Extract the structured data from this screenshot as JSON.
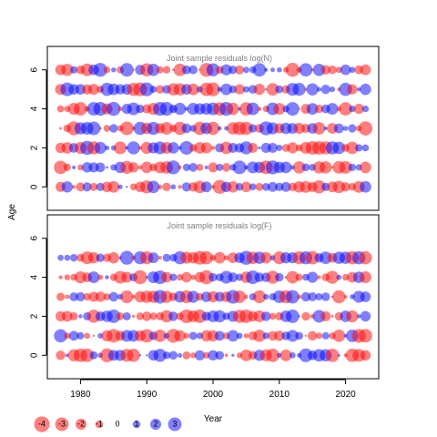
{
  "chart_data": [
    {
      "type": "scatter",
      "title": "Joint sample residuals log(N)",
      "x_range": [
        1975,
        2025
      ],
      "ylim": [
        -1.2,
        7.2
      ],
      "ages": [
        0,
        1,
        2,
        3,
        4,
        5,
        6
      ],
      "years": [
        1977,
        2023
      ],
      "y_ticks": [
        0,
        2,
        4,
        6
      ]
    },
    {
      "type": "scatter",
      "title": "Joint sample residuals log(F)",
      "x_range": [
        1975,
        2025
      ],
      "ylim": [
        -1.2,
        7.2
      ],
      "ages": [
        0,
        1,
        2,
        3,
        4,
        5
      ],
      "years": [
        1977,
        2023
      ],
      "y_ticks": [
        0,
        2,
        4,
        6
      ]
    }
  ],
  "x_ticks": [
    1980,
    1990,
    2000,
    2010,
    2020
  ],
  "xlabel": "Year",
  "ylabel": "Age",
  "colors": {
    "negative": "#ff0000",
    "positive": "#0000ff"
  },
  "legend": [
    {
      "label": "-4",
      "value": -4
    },
    {
      "label": "-3",
      "value": -3
    },
    {
      "label": "-2",
      "value": -2
    },
    {
      "label": "-1",
      "value": -1
    },
    {
      "label": "0",
      "value": 0
    },
    {
      "label": "1",
      "value": 1
    },
    {
      "label": "2",
      "value": 2
    },
    {
      "label": "3",
      "value": 3
    }
  ]
}
